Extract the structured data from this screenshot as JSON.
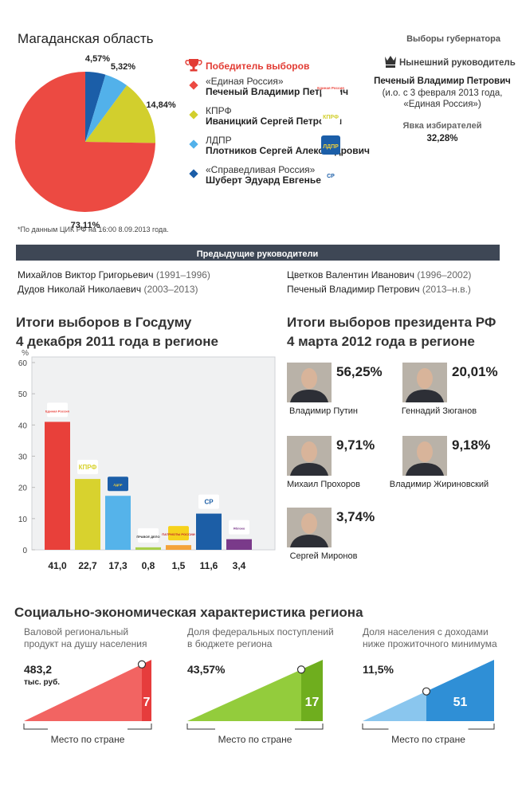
{
  "header": {
    "title": "Магаданская область",
    "subtitle": "Выборы губернатора"
  },
  "legend_title": "Победитель выборов",
  "note": "*По данным ЦИК РФ на 16:00 8.09.2013 года.",
  "current": {
    "title": "Нынешний руководитель",
    "name": "Печеный Владимир Петрович",
    "details": [
      "(и.о. с 3 февраля 2013 года,",
      "«Единая Россия»)"
    ],
    "turnout_label": "Явка избирателей",
    "turnout": "32,28%"
  },
  "previous": {
    "title": "Предыдущие руководители",
    "items": [
      {
        "name": "Михайлов Виктор Григорьевич",
        "years": "(1991–1996)"
      },
      {
        "name": "Цветков Валентин Иванович",
        "years": "(1996–2002)"
      },
      {
        "name": "Дудов Николай Николаевич",
        "years": "(2003–2013)"
      },
      {
        "name": "Печеный Владимир Петрович",
        "years": "(2013–н.в.)"
      }
    ]
  },
  "chart_data": [
    {
      "type": "pie",
      "categories": [
        "«Единая Россия»",
        "КПРФ",
        "ЛДПР",
        "«Справедливая Россия»"
      ],
      "candidates": [
        "Печеный Владимир Петрович",
        "Иваницкий Сергей Петрович",
        "Плотников Сергей Александрович",
        "Шуберт Эдуард Евгеньевич"
      ],
      "logos": [
        "Единая Россия",
        "КПРФ",
        "ЛДПР",
        "СР"
      ],
      "values": [
        73.11,
        14.84,
        5.32,
        4.57
      ],
      "value_labels": [
        "73,11%",
        "14,84%",
        "5,32%",
        "4,57%"
      ],
      "colors": [
        "#ec4a42",
        "#d2cf2d",
        "#52b1ea",
        "#1b5ea8"
      ]
    },
    {
      "type": "bar",
      "title": [
        "Итоги выборов в Госдуму",
        "4 декабря 2011 года в регионе"
      ],
      "ylabel": "%",
      "categories": [
        "Единая Россия",
        "КПРФ",
        "ЛДПР",
        "ПРАВОЕ ДЕЛО",
        "ПАТРИОТЫ РОССИИ",
        "СР",
        "Яблоко"
      ],
      "values": [
        41.0,
        22.7,
        17.3,
        0.8,
        1.5,
        11.6,
        3.4
      ],
      "value_labels": [
        "41,0",
        "22,7",
        "17,3",
        "0,8",
        "1,5",
        "11,6",
        "3,4"
      ],
      "colors": [
        "#e8403a",
        "#d8d22e",
        "#55b3ea",
        "#a9cf4a",
        "#f4a33a",
        "#1c5ea6",
        "#7a3a8a"
      ],
      "ylim": [
        0,
        60
      ],
      "yticks": [
        0,
        10,
        20,
        30,
        40,
        50,
        60
      ],
      "grid": false
    }
  ],
  "president": {
    "title": [
      "Итоги выборов президента РФ",
      "4 марта 2012 года в регионе"
    ],
    "candidates": [
      {
        "name": "Владимир Путин",
        "result": "56,25%"
      },
      {
        "name": "Геннадий Зюганов",
        "result": "20,01%"
      },
      {
        "name": "Михаил Прохоров",
        "result": "9,71%"
      },
      {
        "name": "Владимир Жириновский",
        "result": "9,18%"
      },
      {
        "name": "Сергей Миронов",
        "result": "3,74%"
      }
    ]
  },
  "social": {
    "title": "Социально-экономическая характеристика региона",
    "rank_label": "Место по стране",
    "items": [
      {
        "label": [
          "Валовой региональный",
          "продукт на душу населения"
        ],
        "value": "483,2",
        "unit": "тыс. руб.",
        "rank": 7
      },
      {
        "label": [
          "Доля федеральных поступлений",
          "в бюджете региона"
        ],
        "value": "43,57%",
        "rank": 17
      },
      {
        "label": [
          "Доля населения с доходами",
          "ниже прожиточного минимума"
        ],
        "value": "11,5%",
        "rank": 51
      }
    ]
  }
}
